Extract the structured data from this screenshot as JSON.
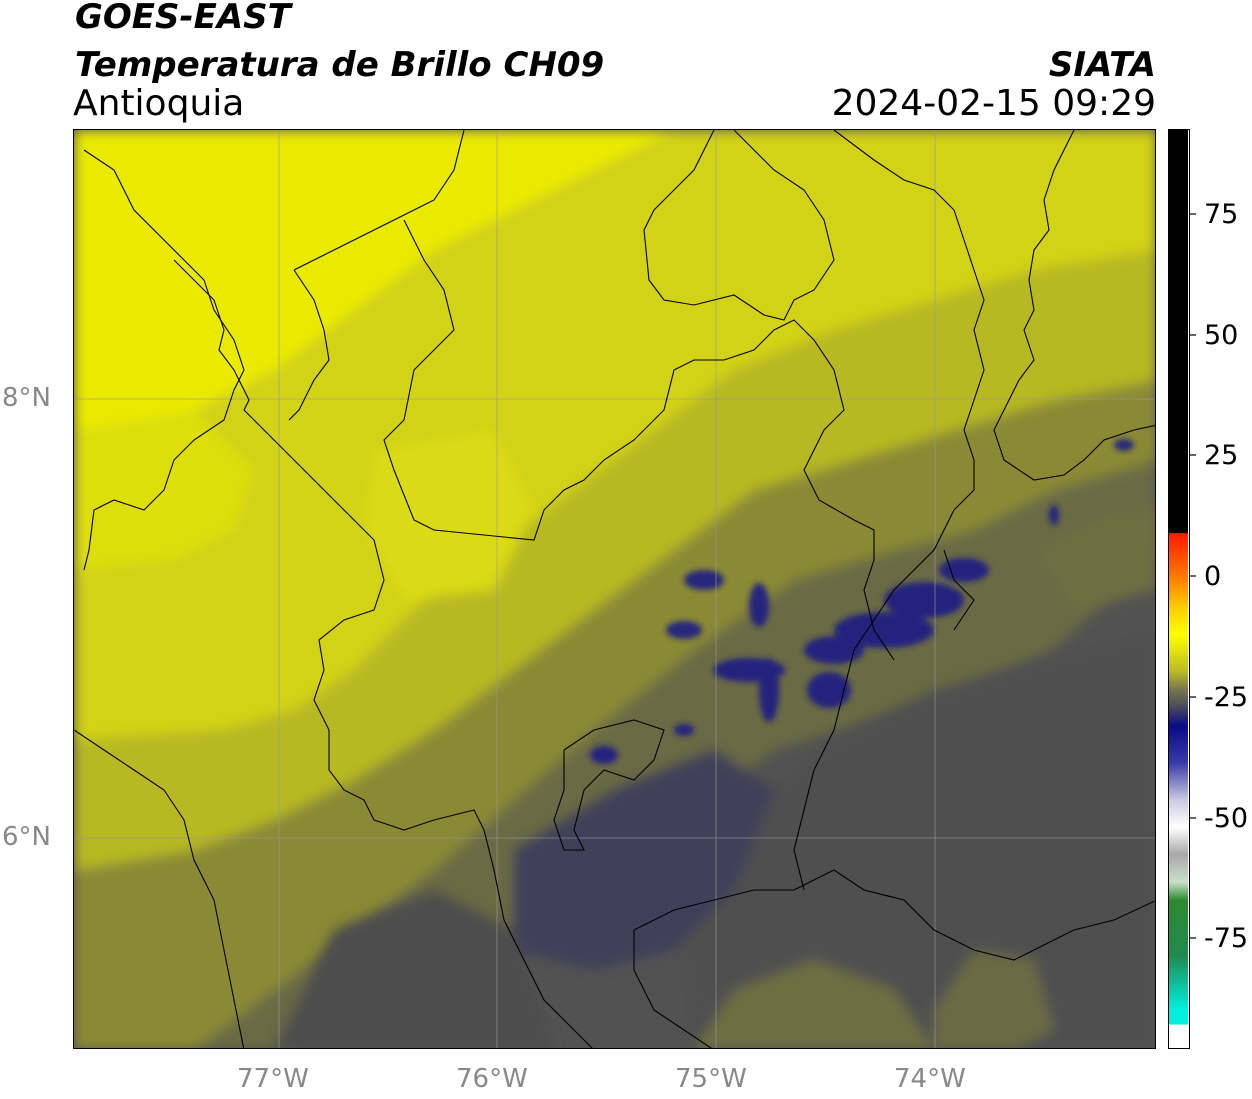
{
  "header": {
    "satellite": "GOES-EAST",
    "product": "Temperatura de Brillo CH09",
    "region": "Antioquia",
    "agency": "SIATA",
    "datetime": "2024-02-15 09:29"
  },
  "map": {
    "lat_ticks": [
      "8°N",
      "6°N"
    ],
    "lon_ticks": [
      "77°W",
      "76°W",
      "75°W",
      "74°W"
    ],
    "palette": {
      "bright_yellow": "#f2f200",
      "yellow": "#d9d915",
      "olive": "#b8b820",
      "dark_olive": "#8a8a35",
      "grey_olive": "#6b6b45",
      "grey": "#525252",
      "slate": "#434358",
      "navy": "#1a1a80"
    }
  },
  "colorbar": {
    "labels": [
      "75",
      "50",
      "25",
      "0",
      "-25",
      "-50",
      "-75"
    ],
    "colors": {
      "black": "#000000",
      "red": "#ff1a00",
      "orange": "#ff9900",
      "yellow": "#ffff00",
      "olive": "#bcbc25",
      "grey": "#555555",
      "navy": "#0a0a8a",
      "white": "#ffffff",
      "green": "#2f8a2f",
      "cyan": "#00f0e0"
    }
  }
}
